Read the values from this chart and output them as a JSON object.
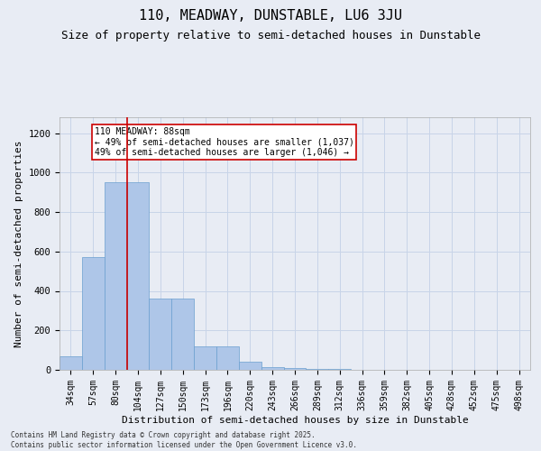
{
  "title": "110, MEADWAY, DUNSTABLE, LU6 3JU",
  "subtitle": "Size of property relative to semi-detached houses in Dunstable",
  "xlabel": "Distribution of semi-detached houses by size in Dunstable",
  "ylabel": "Number of semi-detached properties",
  "categories": [
    "34sqm",
    "57sqm",
    "80sqm",
    "104sqm",
    "127sqm",
    "150sqm",
    "173sqm",
    "196sqm",
    "220sqm",
    "243sqm",
    "266sqm",
    "289sqm",
    "312sqm",
    "336sqm",
    "359sqm",
    "382sqm",
    "405sqm",
    "428sqm",
    "452sqm",
    "475sqm",
    "498sqm"
  ],
  "values": [
    70,
    570,
    950,
    950,
    360,
    360,
    120,
    120,
    40,
    15,
    10,
    5,
    3,
    2,
    1,
    1,
    0,
    0,
    0,
    0,
    0
  ],
  "bar_color": "#aec6e8",
  "bar_edge_color": "#6a9fd0",
  "grid_color": "#c8d4e8",
  "background_color": "#e8ecf4",
  "vline_x": 2.5,
  "vline_color": "#cc0000",
  "annotation_text": "110 MEADWAY: 88sqm\n← 49% of semi-detached houses are smaller (1,037)\n49% of semi-detached houses are larger (1,046) →",
  "annotation_box_facecolor": "#ffffff",
  "annotation_box_edgecolor": "#cc0000",
  "ylim": [
    0,
    1280
  ],
  "yticks": [
    0,
    200,
    400,
    600,
    800,
    1000,
    1200
  ],
  "footer": "Contains HM Land Registry data © Crown copyright and database right 2025.\nContains public sector information licensed under the Open Government Licence v3.0.",
  "title_fontsize": 11,
  "subtitle_fontsize": 9,
  "tick_fontsize": 7,
  "ylabel_fontsize": 8,
  "xlabel_fontsize": 8,
  "footer_fontsize": 5.5
}
